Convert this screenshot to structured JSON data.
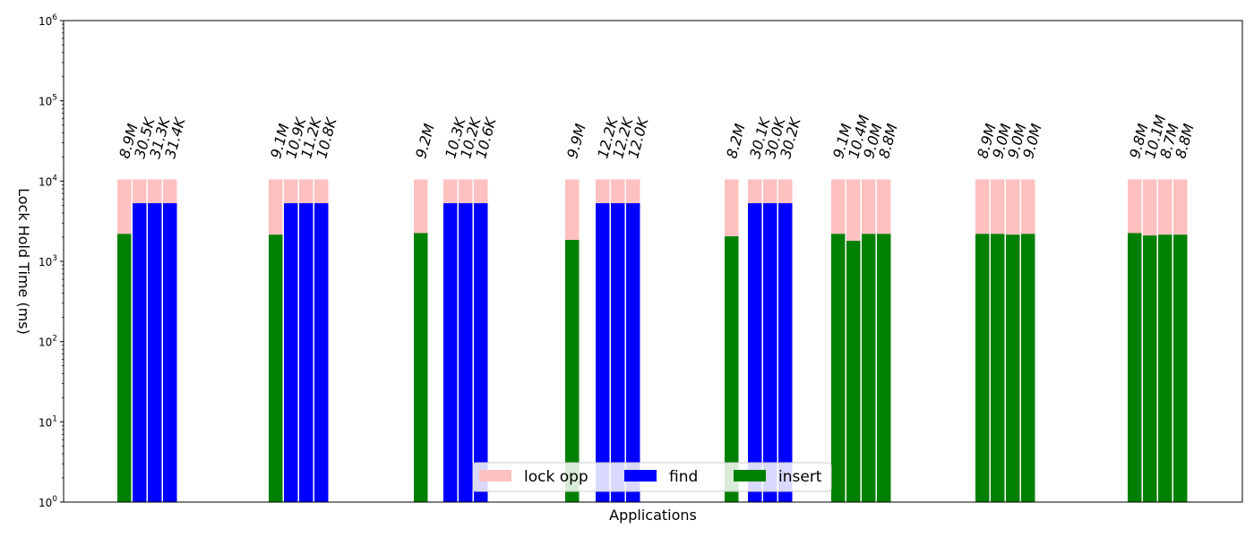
{
  "chart_data": {
    "type": "bar",
    "stacked": true,
    "y_scale": "log",
    "xlabel": "Applications",
    "ylabel": "Lock Hold Time (ms)",
    "ylim": [
      1,
      1000000
    ],
    "y_ticks": [
      {
        "value": 1,
        "base": "10",
        "exp": "0"
      },
      {
        "value": 10,
        "base": "10",
        "exp": "1"
      },
      {
        "value": 100,
        "base": "10",
        "exp": "2"
      },
      {
        "value": 1000,
        "base": "10",
        "exp": "3"
      },
      {
        "value": 10000,
        "base": "10",
        "exp": "4"
      },
      {
        "value": 100000,
        "base": "10",
        "exp": "5"
      },
      {
        "value": 1000000,
        "base": "10",
        "exp": "6"
      }
    ],
    "grid": false,
    "legend": {
      "placement": "lower-center",
      "entries": [
        {
          "label": "lock opp",
          "color": "#ffc0c0"
        },
        {
          "label": "find",
          "color": "#0000ff"
        },
        {
          "label": "insert",
          "color": "#008000"
        }
      ]
    },
    "groups": [
      {
        "bars": [
          {
            "base": "insert",
            "base_value": 2200,
            "total": 10500,
            "label": "8.9M"
          },
          {
            "base": "find",
            "base_value": 5300,
            "total": 10500,
            "label": "30.5K"
          },
          {
            "base": "find",
            "base_value": 5300,
            "total": 10500,
            "label": "31.3K"
          },
          {
            "base": "find",
            "base_value": 5300,
            "total": 10500,
            "label": "31.4K"
          }
        ]
      },
      {
        "bars": [
          {
            "base": "insert",
            "base_value": 2150,
            "total": 10500,
            "label": "9.1M"
          },
          {
            "base": "find",
            "base_value": 5300,
            "total": 10500,
            "label": "10.9K"
          },
          {
            "base": "find",
            "base_value": 5300,
            "total": 10500,
            "label": "11.2K"
          },
          {
            "base": "find",
            "base_value": 5300,
            "total": 10500,
            "label": "10.8K"
          }
        ]
      },
      {
        "bars": [
          {
            "base": "insert",
            "base_value": 2250,
            "total": 10500,
            "label": "9.2M"
          },
          {
            "base": "find",
            "base_value": 5300,
            "total": 10500,
            "label": "10.3K"
          },
          {
            "base": "find",
            "base_value": 5300,
            "total": 10500,
            "label": "10.2K"
          },
          {
            "base": "find",
            "base_value": 5300,
            "total": 10500,
            "label": "10.6K"
          }
        ]
      },
      {
        "bars": [
          {
            "base": "insert",
            "base_value": 1850,
            "total": 10500,
            "label": "9.9M"
          },
          {
            "base": "find",
            "base_value": 5300,
            "total": 10500,
            "label": "12.2K"
          },
          {
            "base": "find",
            "base_value": 5300,
            "total": 10500,
            "label": "12.2K"
          },
          {
            "base": "find",
            "base_value": 5300,
            "total": 10500,
            "label": "12.0K"
          }
        ]
      },
      {
        "bars": [
          {
            "base": "insert",
            "base_value": 2050,
            "total": 10500,
            "label": "8.2M"
          },
          {
            "base": "find",
            "base_value": 5300,
            "total": 10500,
            "label": "30.1K"
          },
          {
            "base": "find",
            "base_value": 5300,
            "total": 10500,
            "label": "30.0K"
          },
          {
            "base": "find",
            "base_value": 5300,
            "total": 10500,
            "label": "30.2K"
          }
        ]
      },
      {
        "bars": [
          {
            "base": "insert",
            "base_value": 2200,
            "total": 10500,
            "label": "9.1M"
          },
          {
            "base": "insert",
            "base_value": 1800,
            "total": 10500,
            "label": "10.4M"
          },
          {
            "base": "insert",
            "base_value": 2200,
            "total": 10500,
            "label": "9.0M"
          },
          {
            "base": "insert",
            "base_value": 2200,
            "total": 10500,
            "label": "8.8M"
          }
        ]
      },
      {
        "bars": [
          {
            "base": "insert",
            "base_value": 2200,
            "total": 10500,
            "label": "8.9M"
          },
          {
            "base": "insert",
            "base_value": 2200,
            "total": 10500,
            "label": "9.0M"
          },
          {
            "base": "insert",
            "base_value": 2150,
            "total": 10500,
            "label": "9.0M"
          },
          {
            "base": "insert",
            "base_value": 2200,
            "total": 10500,
            "label": "9.0M"
          }
        ]
      },
      {
        "bars": [
          {
            "base": "insert",
            "base_value": 2250,
            "total": 10500,
            "label": "9.8M"
          },
          {
            "base": "insert",
            "base_value": 2100,
            "total": 10500,
            "label": "10.1M"
          },
          {
            "base": "insert",
            "base_value": 2150,
            "total": 10500,
            "label": "8.7M"
          },
          {
            "base": "insert",
            "base_value": 2150,
            "total": 10500,
            "label": "8.8M"
          }
        ]
      }
    ]
  }
}
